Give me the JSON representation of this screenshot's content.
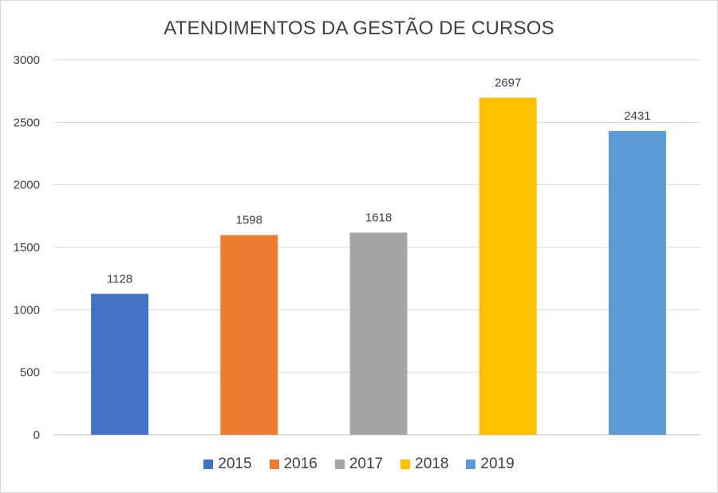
{
  "chart_data": {
    "type": "bar",
    "title": "ATENDIMENTOS DA GESTÃO DE CURSOS",
    "categories": [
      "2015",
      "2016",
      "2017",
      "2018",
      "2019"
    ],
    "values": [
      1128,
      1598,
      1618,
      2697,
      2431
    ],
    "data_labels": [
      "1128",
      "1598",
      "1618",
      "2697",
      "2431"
    ],
    "colors": [
      "#4472c4",
      "#ed7d31",
      "#a5a5a5",
      "#ffc000",
      "#5b9bd5"
    ],
    "ylim": [
      0,
      3000
    ],
    "yticks": [
      0,
      500,
      1000,
      1500,
      2000,
      2500,
      3000
    ],
    "ytick_labels": [
      "0",
      "500",
      "1000",
      "1500",
      "2000",
      "2500",
      "3000"
    ],
    "xlabel": "",
    "ylabel": "",
    "grid": true,
    "legend_position": "bottom",
    "legend": [
      "2015",
      "2016",
      "2017",
      "2018",
      "2019"
    ]
  }
}
